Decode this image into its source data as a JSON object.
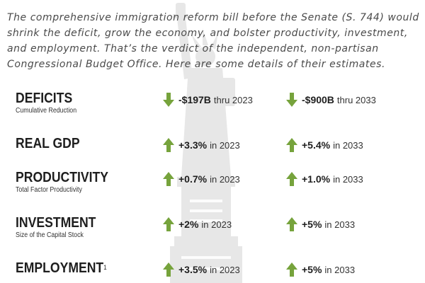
{
  "intro": "The comprehensive immigration reform bill before the Senate (S. 744) would shrink the deficit, grow the economy, and bolster productivity, investment, and employment. That’s the verdict of the independent, non-partisan Congressional Budget Office. Here are some details of their estimates.",
  "rows": [
    {
      "title": "DEFICITS",
      "subtitle": "Cumulative Reduction",
      "left": {
        "direction": "down",
        "value": "-$197B",
        "period": "thru 2023"
      },
      "right": {
        "direction": "down",
        "value": "-$900B",
        "period": "thru 2033"
      }
    },
    {
      "title": "REAL GDP",
      "subtitle": "",
      "left": {
        "direction": "up",
        "value": "+3.3%",
        "period": "in 2023"
      },
      "right": {
        "direction": "up",
        "value": "+5.4%",
        "period": "in 2033"
      }
    },
    {
      "title": "PRODUCTIVITY",
      "subtitle": "Total Factor Productivity",
      "left": {
        "direction": "up",
        "value": "+0.7%",
        "period": "in 2023"
      },
      "right": {
        "direction": "up",
        "value": "+1.0%",
        "period": "in 2033"
      }
    },
    {
      "title": "INVESTMENT",
      "subtitle": "Size of the Capital Stock",
      "left": {
        "direction": "up",
        "value": "+2%",
        "period": "in 2023"
      },
      "right": {
        "direction": "up",
        "value": "+5%",
        "period": "in 2033"
      }
    },
    {
      "title": "EMPLOYMENT",
      "title_sup": "1",
      "subtitle": "",
      "left": {
        "direction": "up",
        "value": "+3.5%",
        "period": "in 2023"
      },
      "right": {
        "direction": "up",
        "value": "+5%",
        "period": "in 2033"
      }
    }
  ],
  "colors": {
    "arrow_green": "#76a33c",
    "watermark": "#e7e7e7"
  }
}
